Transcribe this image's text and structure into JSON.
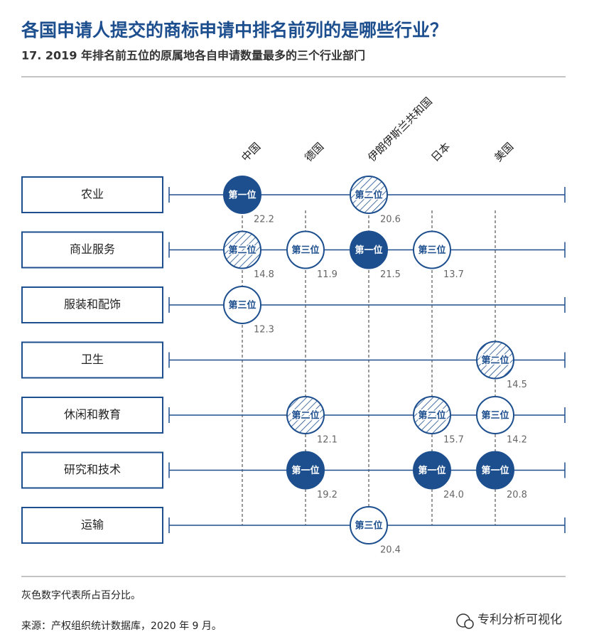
{
  "chart_data": {
    "type": "dot-matrix",
    "title": "各国申请人提交的商标申请中排名前列的是哪些行业？",
    "subtitle": "17. 2019 年排名前五位的原属地各自申请数量最多的三个行业部门",
    "columns": [
      "中国",
      "德国",
      "伊朗伊斯兰共和国",
      "日本",
      "美国"
    ],
    "color": "#1d4f8f",
    "rows": [
      {
        "name": "农业",
        "labels": [
          "第一位",
          null,
          "第二位",
          null,
          null
        ],
        "styles": [
          "filled",
          null,
          "hatched",
          null,
          null
        ],
        "values": [
          22.2,
          null,
          20.6,
          null,
          null
        ]
      },
      {
        "name": "商业服务",
        "labels": [
          "第二位",
          "第三位",
          "第一位",
          "第三位",
          null
        ],
        "styles": [
          "hatched",
          "outline",
          "filled",
          "outline",
          null
        ],
        "values": [
          14.8,
          11.9,
          21.5,
          13.7,
          null
        ]
      },
      {
        "name": "服装和配饰",
        "labels": [
          "第三位",
          null,
          null,
          null,
          null
        ],
        "styles": [
          "outline",
          null,
          null,
          null,
          null
        ],
        "values": [
          12.3,
          null,
          null,
          null,
          null
        ]
      },
      {
        "name": "卫生",
        "labels": [
          null,
          null,
          null,
          null,
          "第二位"
        ],
        "styles": [
          null,
          null,
          null,
          null,
          "hatched"
        ],
        "values": [
          null,
          null,
          null,
          null,
          14.5
        ]
      },
      {
        "name": "休闲和教育",
        "labels": [
          null,
          "第二位",
          null,
          "第二位",
          "第三位"
        ],
        "styles": [
          null,
          "hatched",
          null,
          "hatched",
          "outline"
        ],
        "values": [
          null,
          12.1,
          null,
          15.7,
          14.2
        ]
      },
      {
        "name": "研究和技术",
        "labels": [
          null,
          "第一位",
          null,
          "第一位",
          "第一位"
        ],
        "styles": [
          null,
          "filled",
          null,
          "filled",
          "filled"
        ],
        "values": [
          null,
          19.2,
          null,
          24.0,
          20.8
        ],
        "value_labels": [
          null,
          "19.2",
          null,
          "24.0",
          "20.8"
        ]
      },
      {
        "name": "运输",
        "labels": [
          null,
          null,
          "第三位",
          null,
          null
        ],
        "styles": [
          null,
          null,
          "outline",
          null,
          null
        ],
        "values": [
          null,
          null,
          20.4,
          null,
          null
        ]
      }
    ],
    "notes": [
      "灰色数字代表所占百分比。",
      "来源：产权组织统计数据库，2020 年 9 月。"
    ]
  },
  "watermark": "专利分析可视化"
}
